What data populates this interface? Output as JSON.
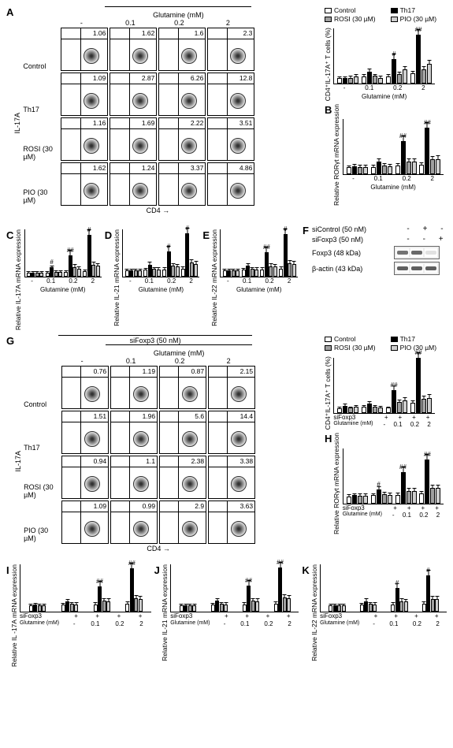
{
  "colors": {
    "control": "#ffffff",
    "th17": "#000000",
    "rosi": "#a0a0a0",
    "pio": "#cfcfcf",
    "border": "#000000",
    "grid": "#cccccc"
  },
  "conditions": [
    "Control",
    "Th17",
    "ROSI (30 µM)",
    "PIO (30 µM)"
  ],
  "glutamine_header": "Glutamine (mM)",
  "glutamine_levels": [
    "-",
    "0.1",
    "0.2",
    "2"
  ],
  "sifoxp3_header": "siFoxp3 (50 nM)",
  "axis_y_flow": "IL-17A",
  "axis_x_flow": "CD4",
  "legend": [
    {
      "label": "Control",
      "color": "#ffffff"
    },
    {
      "label": "Th17",
      "color": "#000000"
    },
    {
      "label": "ROSI (30 µM)",
      "color": "#a0a0a0"
    },
    {
      "label": "PIO (30 µM)",
      "color": "#cfcfcf"
    }
  ],
  "panelA": {
    "label": "A",
    "flow_values": [
      [
        1.06,
        1.62,
        1.6,
        2.3
      ],
      [
        1.09,
        2.87,
        6.26,
        12.8
      ],
      [
        1.16,
        1.69,
        2.22,
        3.51
      ],
      [
        1.62,
        1.24,
        3.37,
        4.86
      ]
    ],
    "bar": {
      "ylabel": "CD4⁺IL-17A⁺\nT cells (%)",
      "ylim": [
        0,
        15
      ],
      "ytick_step": 5,
      "values": [
        [
          1.1,
          1.1,
          1.2,
          1.6
        ],
        [
          1.6,
          2.9,
          1.7,
          1.2
        ],
        [
          1.6,
          6.3,
          2.2,
          3.4
        ],
        [
          2.3,
          12.8,
          3.5,
          4.9
        ]
      ],
      "sig": [
        "",
        "",
        "#",
        "##"
      ],
      "xlabel": "Glutamine (mM)"
    }
  },
  "panelB": {
    "label": "B",
    "ylabel": "Relative RORγt\nmRNA expression",
    "ylim": [
      0,
      10
    ],
    "ytick_step": 2,
    "values": [
      [
        1.0,
        1.2,
        1.1,
        1.1
      ],
      [
        1.1,
        2.0,
        1.3,
        1.2
      ],
      [
        1.3,
        5.7,
        2.0,
        2.0
      ],
      [
        1.5,
        8.2,
        2.4,
        2.5
      ]
    ],
    "sig": [
      "",
      "",
      "##",
      "##"
    ],
    "xlabel": "Glutamine (mM)"
  },
  "panelC": {
    "label": "C",
    "ylabel": "Relative IL-17A\nmRNA expression",
    "ylim": [
      0,
      20
    ],
    "ytick_step": 5,
    "values": [
      [
        1.0,
        1.1,
        1.0,
        1.0
      ],
      [
        1.1,
        3.2,
        1.5,
        1.4
      ],
      [
        1.4,
        8.5,
        3.5,
        2.8
      ],
      [
        1.8,
        17.0,
        4.5,
        4.0
      ]
    ],
    "sig": [
      "",
      "#",
      "##",
      "#"
    ],
    "xlabel": "Glutamine (mM)"
  },
  "panelD": {
    "label": "D",
    "ylabel": "Relative IL-21\nmRNA expression",
    "ylim": [
      0,
      10
    ],
    "ytick_step": 2,
    "values": [
      [
        1.0,
        1.0,
        1.0,
        1.0
      ],
      [
        1.1,
        2.2,
        1.3,
        1.2
      ],
      [
        1.2,
        5.0,
        2.0,
        1.8
      ],
      [
        1.4,
        8.8,
        2.6,
        2.3
      ]
    ],
    "sig": [
      "",
      "",
      "#",
      "#"
    ],
    "xlabel": "Glutamine (mM)"
  },
  "panelE": {
    "label": "E",
    "ylabel": "Relative IL-22\nmRNA expression",
    "ylim": [
      0,
      10
    ],
    "ytick_step": 2,
    "values": [
      [
        1.0,
        1.0,
        1.0,
        1.0
      ],
      [
        1.1,
        2.0,
        1.3,
        1.2
      ],
      [
        1.2,
        4.8,
        1.9,
        1.8
      ],
      [
        1.4,
        8.6,
        2.5,
        2.4
      ]
    ],
    "sig": [
      "",
      "",
      "##",
      "#"
    ],
    "xlabel": "Glutamine (mM)"
  },
  "panelF": {
    "label": "F",
    "treatments": [
      {
        "label": "siControl (50 nM)",
        "marks": [
          "-",
          "+",
          "-"
        ]
      },
      {
        "label": "siFoxp3 (50 nM)",
        "marks": [
          "-",
          "-",
          "+"
        ]
      }
    ],
    "bands": [
      {
        "label": "Foxp3 (48 kDa)",
        "intensity": [
          0.7,
          0.75,
          0.15
        ]
      },
      {
        "label": "β-actin (43 kDa)",
        "intensity": [
          0.8,
          0.8,
          0.8
        ]
      }
    ]
  },
  "panelG": {
    "label": "G",
    "flow_values": [
      [
        0.76,
        1.19,
        0.87,
        2.15
      ],
      [
        1.51,
        1.96,
        5.6,
        14.4
      ],
      [
        0.94,
        1.1,
        2.38,
        3.38
      ],
      [
        1.09,
        0.99,
        2.9,
        3.63
      ]
    ],
    "bar": {
      "ylabel": "CD4⁺IL-17A⁺\nT cells (%)",
      "ylim": [
        0,
        15
      ],
      "ytick_step": 5,
      "values": [
        [
          0.8,
          1.5,
          0.9,
          1.1
        ],
        [
          1.2,
          2.0,
          1.1,
          1.0
        ],
        [
          0.9,
          5.6,
          2.4,
          2.9
        ],
        [
          2.2,
          14.4,
          3.4,
          3.6
        ]
      ],
      "sig": [
        "",
        "",
        "##",
        "##"
      ],
      "xlabel_top": "siFoxp3",
      "xlabel_bot": "Glutamine (mM)",
      "siFoxp3_marks": [
        "+",
        "+",
        "+",
        "+"
      ],
      "glu_marks": [
        "-",
        "0.1",
        "0.2",
        "2"
      ]
    }
  },
  "panelH": {
    "label": "H",
    "ylabel": "Relative RORγt\nmRNA expression",
    "ylim": [
      0,
      10
    ],
    "ytick_step": 2,
    "values": [
      [
        1.0,
        1.2,
        1.1,
        1.1
      ],
      [
        1.2,
        2.2,
        1.4,
        1.3
      ],
      [
        1.3,
        5.4,
        2.0,
        2.0
      ],
      [
        1.5,
        7.6,
        2.5,
        2.5
      ]
    ],
    "sig": [
      "",
      "#",
      "##",
      "##"
    ]
  },
  "panelI": {
    "label": "I",
    "ylabel": "Relative IL -17A\nmRNA expression",
    "ylim": [
      0,
      10
    ],
    "ytick_step": 2,
    "values": [
      [
        1.0,
        1.1,
        1.0,
        1.0
      ],
      [
        1.1,
        1.8,
        1.3,
        1.2
      ],
      [
        1.2,
        5.0,
        2.0,
        1.9
      ],
      [
        1.4,
        8.8,
        2.5,
        2.4
      ]
    ],
    "sig": [
      "",
      "",
      "##",
      "##"
    ]
  },
  "panelJ": {
    "label": "J",
    "ylabel": "Relative IL-21\nmRNA expression",
    "ylim": [
      0,
      10
    ],
    "ytick_step": 2,
    "values": [
      [
        1.0,
        1.0,
        1.0,
        1.0
      ],
      [
        1.1,
        2.0,
        1.3,
        1.2
      ],
      [
        1.2,
        5.2,
        2.0,
        1.9
      ],
      [
        1.4,
        9.0,
        2.6,
        2.5
      ]
    ],
    "sig": [
      "",
      "",
      "##",
      "##"
    ]
  },
  "panelK": {
    "label": "K",
    "ylabel": "Relative IL-22\nmRNA expression",
    "ylim": [
      0,
      10
    ],
    "ytick_step": 2,
    "values": [
      [
        1.0,
        1.0,
        1.0,
        1.0
      ],
      [
        1.1,
        1.9,
        1.3,
        1.2
      ],
      [
        1.2,
        4.6,
        1.9,
        1.8
      ],
      [
        1.4,
        7.4,
        2.4,
        2.3
      ]
    ],
    "sig": [
      "",
      "",
      "#",
      "#"
    ]
  },
  "bottom_sublabel": {
    "row1": "siFoxp3",
    "row2": "Glutamine (mM)",
    "siFoxp3_marks": [
      "+",
      "+",
      "+",
      "+"
    ],
    "glu_marks": [
      "-",
      "0.1",
      "0.2",
      "2"
    ]
  }
}
